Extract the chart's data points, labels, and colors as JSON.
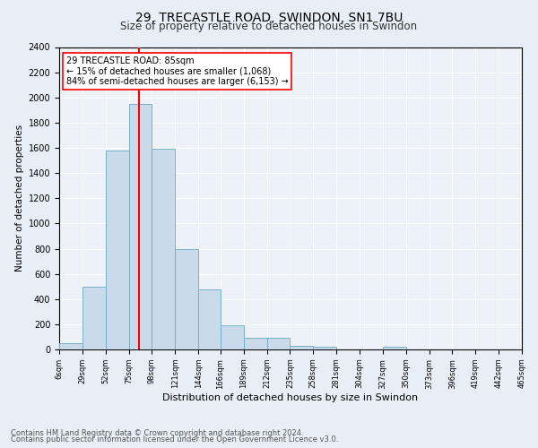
{
  "title": "29, TRECASTLE ROAD, SWINDON, SN1 7BU",
  "subtitle": "Size of property relative to detached houses in Swindon",
  "xlabel": "Distribution of detached houses by size in Swindon",
  "ylabel": "Number of detached properties",
  "bin_edges": [
    6,
    29,
    52,
    75,
    98,
    121,
    144,
    166,
    189,
    212,
    235,
    258,
    281,
    304,
    327,
    350,
    373,
    396,
    419,
    442,
    465
  ],
  "bar_heights": [
    50,
    500,
    1580,
    1950,
    1590,
    800,
    480,
    190,
    90,
    90,
    30,
    20,
    0,
    0,
    20,
    0,
    0,
    0,
    0,
    0
  ],
  "bar_color": "#c9daea",
  "bar_edge_color": "#7aafc8",
  "red_line_x": 85,
  "annotation_title": "29 TRECASTLE ROAD: 85sqm",
  "annotation_line1": "← 15% of detached houses are smaller (1,068)",
  "annotation_line2": "84% of semi-detached houses are larger (6,153) →",
  "ylim": [
    0,
    2400
  ],
  "yticks": [
    0,
    200,
    400,
    600,
    800,
    1000,
    1200,
    1400,
    1600,
    1800,
    2000,
    2200,
    2400
  ],
  "tick_labels": [
    "6sqm",
    "29sqm",
    "52sqm",
    "75sqm",
    "98sqm",
    "121sqm",
    "144sqm",
    "166sqm",
    "189sqm",
    "212sqm",
    "235sqm",
    "258sqm",
    "281sqm",
    "304sqm",
    "327sqm",
    "350sqm",
    "373sqm",
    "396sqm",
    "419sqm",
    "442sqm",
    "465sqm"
  ],
  "footnote1": "Contains HM Land Registry data © Crown copyright and database right 2024.",
  "footnote2": "Contains public sector information licensed under the Open Government Licence v3.0.",
  "bg_color": "#e8eef5",
  "plot_bg_color": "#edf2f8"
}
